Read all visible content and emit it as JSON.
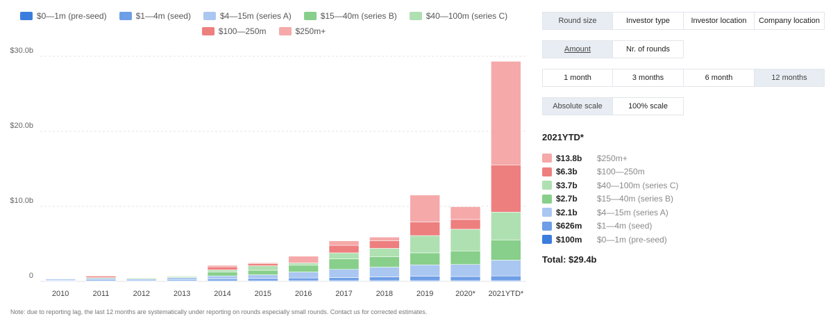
{
  "legend": [
    {
      "label": "$0—1m (pre-seed)",
      "color": "#3b7ddd"
    },
    {
      "label": "$1—4m (seed)",
      "color": "#6e9ee6"
    },
    {
      "label": "$4—15m (series A)",
      "color": "#aac7f1"
    },
    {
      "label": "$15—40m (series B)",
      "color": "#87cf8a"
    },
    {
      "label": "$40—100m (series C)",
      "color": "#afe0b1"
    },
    {
      "label": "$100—250m",
      "color": "#ee7f7f"
    },
    {
      "label": "$250m+",
      "color": "#f5a9a9"
    }
  ],
  "chart_data": {
    "type": "bar",
    "stacked": true,
    "categories": [
      "2010",
      "2011",
      "2012",
      "2013",
      "2014",
      "2015",
      "2016",
      "2017",
      "2018",
      "2019",
      "2020*",
      "2021YTD*"
    ],
    "yticks": [
      "0",
      "$10.0b",
      "$20.0b",
      "$30.0b"
    ],
    "ylim": [
      0,
      30
    ],
    "yunit": "billion USD",
    "series": [
      {
        "name": "$0—1m (pre-seed)",
        "values": [
          0.05,
          0.05,
          0.05,
          0.05,
          0.08,
          0.08,
          0.1,
          0.1,
          0.1,
          0.1,
          0.1,
          0.1
        ]
      },
      {
        "name": "$1—4m (seed)",
        "values": [
          0.1,
          0.15,
          0.12,
          0.15,
          0.25,
          0.3,
          0.35,
          0.4,
          0.5,
          0.6,
          0.55,
          0.626
        ]
      },
      {
        "name": "$4—15m (series A)",
        "values": [
          0.15,
          0.2,
          0.15,
          0.3,
          0.4,
          0.5,
          0.8,
          1.1,
          1.3,
          1.5,
          1.6,
          2.1
        ]
      },
      {
        "name": "$15—40m (series B)",
        "values": [
          0,
          0.1,
          0.1,
          0.1,
          0.5,
          0.6,
          0.9,
          1.4,
          1.4,
          1.6,
          1.8,
          2.7
        ]
      },
      {
        "name": "$40—100m (series C)",
        "values": [
          0,
          0,
          0,
          0.1,
          0.3,
          0.6,
          0.3,
          0.8,
          1.1,
          2.3,
          2.9,
          3.7
        ]
      },
      {
        "name": "$100—250m",
        "values": [
          0,
          0.2,
          0,
          0,
          0.4,
          0.3,
          0,
          1.0,
          1.0,
          1.8,
          1.3,
          6.3
        ]
      },
      {
        "name": "$250m+",
        "values": [
          0,
          0,
          0,
          0,
          0.2,
          0.1,
          0.9,
          0.6,
          0.5,
          3.6,
          1.7,
          13.8
        ]
      }
    ]
  },
  "note": "Note: due to reporting lag, the last 12 months are systematically under reporting on rounds especially small rounds. Contact us for corrected estimates.",
  "controls": {
    "metric_tabs": [
      "Round size",
      "Investor type",
      "Investor location",
      "Company location"
    ],
    "measure_tabs": [
      "Amount",
      "Nr. of rounds"
    ],
    "period_tabs": [
      "1 month",
      "3 months",
      "6 month",
      "12 months"
    ],
    "scale_tabs": [
      "Absolute scale",
      "100% scale"
    ]
  },
  "summary": {
    "title": "2021YTD*",
    "rows": [
      {
        "value": "$13.8b",
        "label": "$250m+",
        "color": "#f5a9a9"
      },
      {
        "value": "$6.3b",
        "label": "$100—250m",
        "color": "#ee7f7f"
      },
      {
        "value": "$3.7b",
        "label": "$40—100m (series C)",
        "color": "#afe0b1"
      },
      {
        "value": "$2.7b",
        "label": "$15—40m (series B)",
        "color": "#87cf8a"
      },
      {
        "value": "$2.1b",
        "label": "$4—15m (series A)",
        "color": "#aac7f1"
      },
      {
        "value": "$626m",
        "label": "$1—4m (seed)",
        "color": "#6e9ee6"
      },
      {
        "value": "$100m",
        "label": "$0—1m (pre-seed)",
        "color": "#3b7ddd"
      }
    ],
    "total": "Total: $29.4b"
  }
}
